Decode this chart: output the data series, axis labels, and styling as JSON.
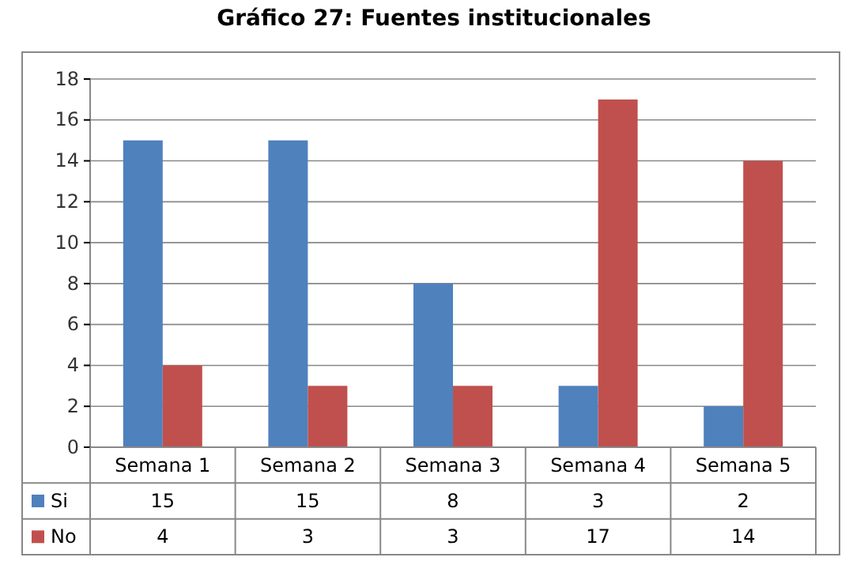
{
  "chart_data": {
    "type": "bar",
    "title": "Gráfico 27: Fuentes institucionales",
    "categories": [
      "Semana 1",
      "Semana 2",
      "Semana 3",
      "Semana 4",
      "Semana 5"
    ],
    "series": [
      {
        "name": "Si",
        "color": "#4f81bd",
        "values": [
          15,
          15,
          8,
          3,
          2
        ]
      },
      {
        "name": "No",
        "color": "#c0504d",
        "values": [
          4,
          3,
          3,
          17,
          14
        ]
      }
    ],
    "ylim": [
      0,
      18
    ],
    "yticks": [
      0,
      2,
      4,
      6,
      8,
      10,
      12,
      14,
      16,
      18
    ],
    "grid": "y",
    "legend": "bottom",
    "data_labels": true
  }
}
